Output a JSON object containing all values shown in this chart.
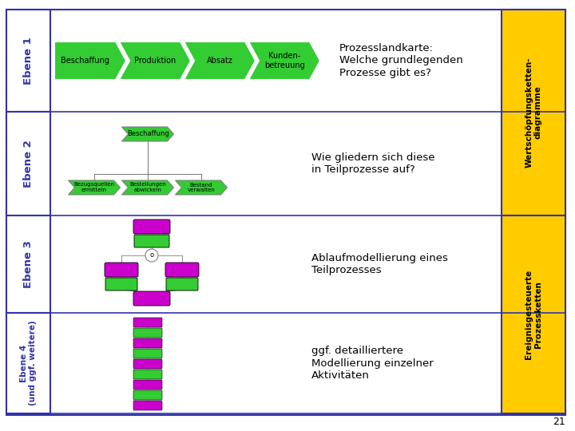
{
  "bg_color": "#ffffff",
  "border_color": "#3333aa",
  "row_labels": [
    "Ebene 1",
    "Ebene 2",
    "Ebene 3",
    "Ebene 4\n(und ggf. weitere)"
  ],
  "row_label_color": "#3333aa",
  "row_border_color": "#3333aa",
  "arrow_boxes": [
    "Beschaffung",
    "Produktion",
    "Absatz",
    "Kunden-\nbetreuung"
  ],
  "arrow_box_color": "#33cc33",
  "arrow_box_text_color": "#000000",
  "right_box1_text": "Wertschöpfungsketten-\ndiagramme",
  "right_box2_text": "Ereignisgesteuerte\nProzessketten",
  "right_box_color": "#ffcc00",
  "right_box_border": "#3333aa",
  "text_e1": "Prozesslandkarte:\nWelche grundlegenden\nProzesse gibt es?",
  "text_e2": "Wie gliedern sich diese\nin Teilprozesse auf?",
  "text_e3": "Ablaufmodellierung eines\nTeilprozesses",
  "text_e4": "ggf. detailliertere\nModellierung einzelner\nAktivitäten",
  "separator_color": "#3333aa",
  "page_number": "21",
  "outer_border_color": "#3333aa",
  "event_color": "#cc00cc",
  "function_color": "#33cc33"
}
